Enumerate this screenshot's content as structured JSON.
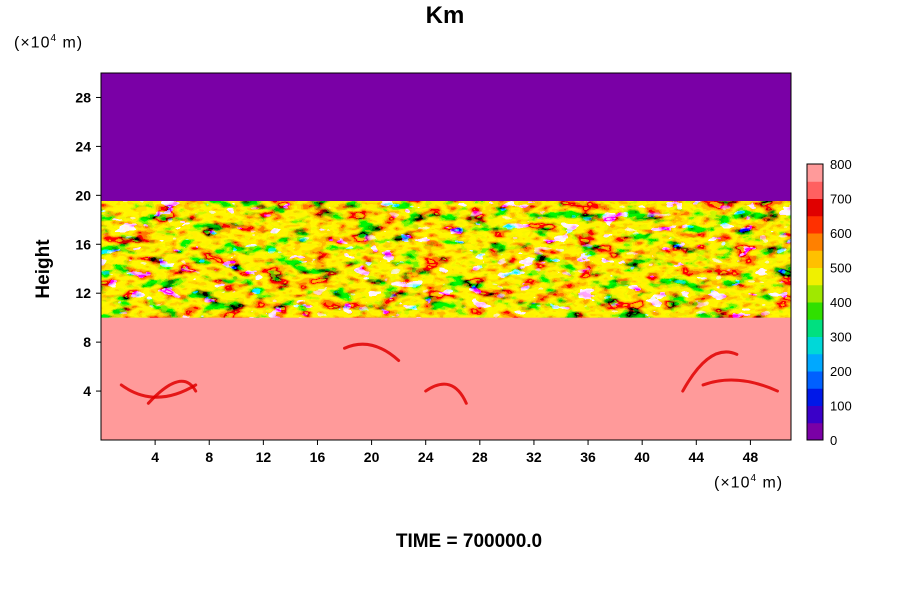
{
  "chart_data": {
    "type": "heatmap",
    "title": "Km",
    "ylabel": "Height",
    "x_unit_prefix": "(×10",
    "x_unit_exp": "4",
    "x_unit_suffix": " m)",
    "y_unit_prefix": "(×10",
    "y_unit_exp": "4",
    "y_unit_suffix": " m)",
    "xlim": [
      0,
      51
    ],
    "ylim": [
      0,
      30
    ],
    "x_ticks": [
      4,
      8,
      12,
      16,
      20,
      24,
      28,
      32,
      36,
      40,
      44,
      48
    ],
    "y_ticks": [
      4,
      8,
      12,
      16,
      20,
      24,
      28
    ],
    "colorbar": {
      "levels": [
        0,
        100,
        200,
        300,
        400,
        500,
        600,
        700,
        800
      ],
      "colors": [
        "#7a00a6",
        "#3a00c8",
        "#0018e8",
        "#0060ff",
        "#00a8ff",
        "#00d8d8",
        "#00e080",
        "#30e000",
        "#a0e800",
        "#f0f000",
        "#ffc000",
        "#ff8000",
        "#ff3000",
        "#e00000",
        "#ff6060",
        "#ff9a9a"
      ]
    },
    "regions": [
      {
        "y_range": [
          19.5,
          30
        ],
        "value": 0,
        "description_color": "#7a00a6"
      },
      {
        "y_range": [
          10,
          19.5
        ],
        "value": "mixed 0-800"
      },
      {
        "y_range": [
          0,
          10
        ],
        "value": 800,
        "description_color": "#ff9a9a"
      }
    ],
    "footer": "TIME = 700000.0"
  }
}
